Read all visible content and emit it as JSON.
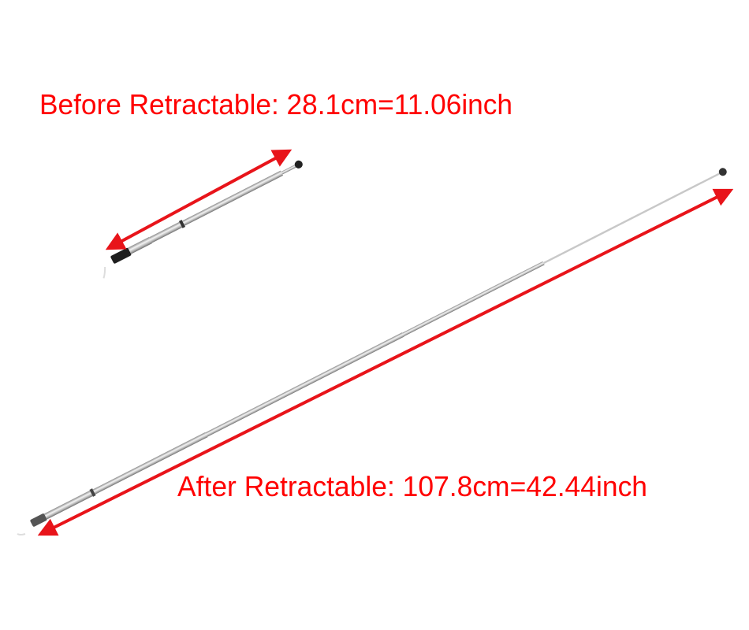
{
  "annotations": {
    "before": "Before Retractable: 28.1cm=11.06inch",
    "after": "After Retractable: 107.8cm=42.44inch"
  },
  "colors": {
    "annotation": "#ff0000",
    "arrow": "#e8141a",
    "antenna_metal": "#b8b8b8",
    "antenna_cap": "#222222"
  },
  "icons": [
    "telescopic-antenna-retracted",
    "telescopic-antenna-extended",
    "double-arrow"
  ]
}
